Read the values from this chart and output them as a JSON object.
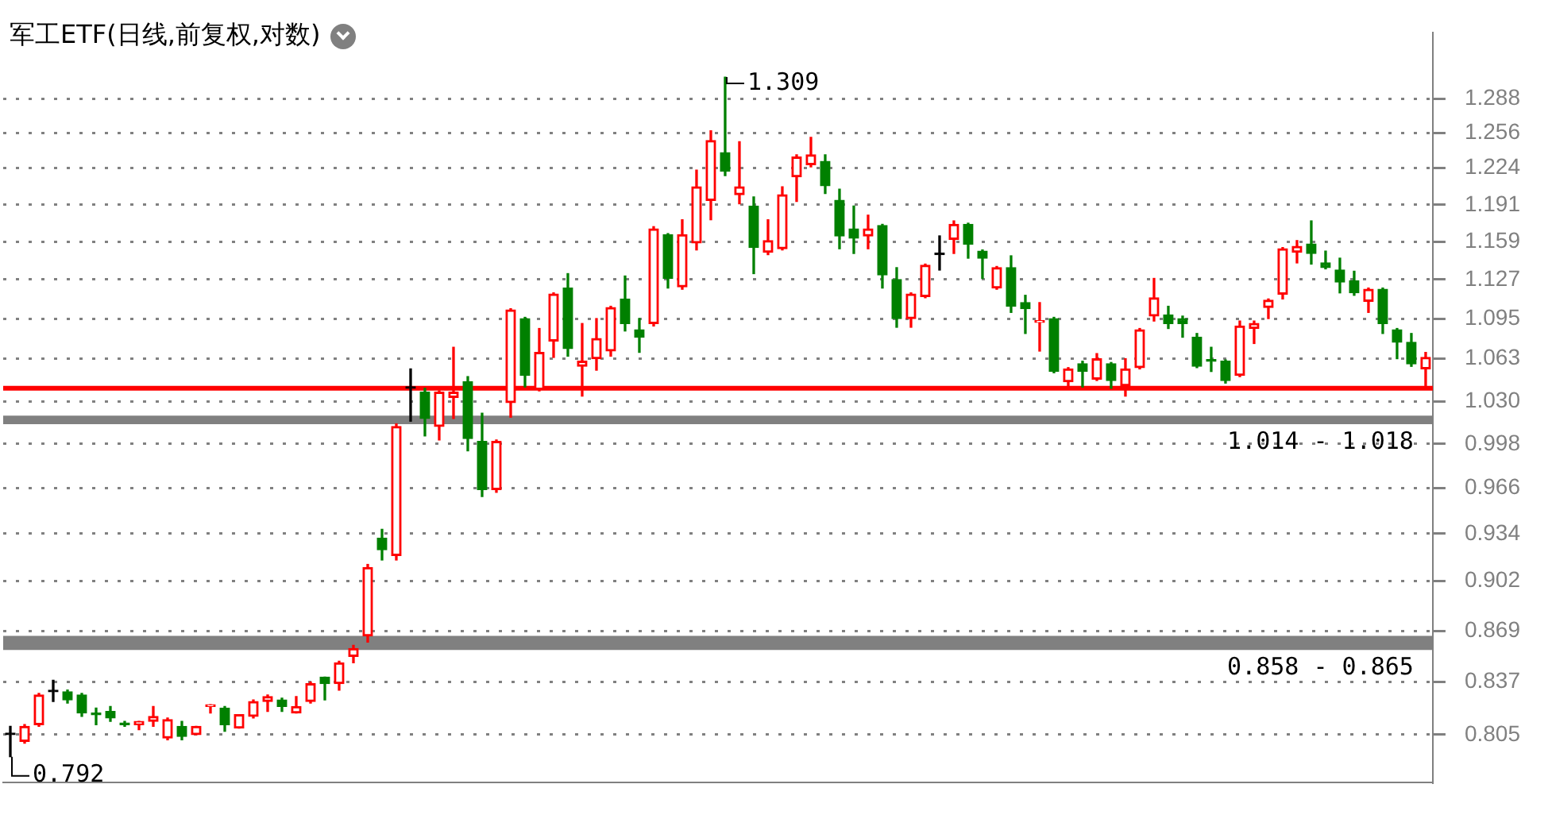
{
  "chart_data": {
    "type": "candlestick",
    "title": "军工ETF(日线,前复权,对数)",
    "categories": [
      null,
      null,
      null,
      null,
      null,
      null,
      null,
      null,
      null,
      null,
      null,
      null,
      null,
      null,
      null,
      null,
      null,
      null,
      null,
      null,
      null,
      null,
      null,
      null,
      null,
      null,
      null,
      null,
      null,
      null,
      null,
      null,
      null,
      null,
      null,
      null,
      null,
      null,
      null,
      null,
      null,
      null,
      null,
      null,
      null,
      null,
      null,
      null,
      null,
      null,
      null,
      null,
      null,
      null,
      null,
      null,
      null,
      null,
      null,
      null,
      null,
      null,
      null,
      null,
      null,
      null,
      null,
      null,
      null,
      null,
      null,
      null,
      null,
      null,
      null,
      null,
      null,
      null,
      null,
      null,
      null,
      null,
      null,
      null,
      null,
      null,
      null,
      null,
      null,
      null,
      null,
      null,
      null,
      null,
      null,
      null,
      null,
      null,
      null,
      null
    ],
    "ohlc": [
      [
        0.805,
        0.81,
        0.792,
        0.805
      ],
      [
        0.801,
        0.811,
        0.8,
        0.81
      ],
      [
        0.811,
        0.83,
        0.81,
        0.829
      ],
      [
        0.831,
        0.838,
        0.825,
        0.831
      ],
      [
        0.831,
        0.832,
        0.824,
        0.826
      ],
      [
        0.829,
        0.83,
        0.816,
        0.818
      ],
      [
        0.818,
        0.821,
        0.811,
        0.817
      ],
      [
        0.819,
        0.822,
        0.813,
        0.815
      ],
      [
        0.812,
        0.813,
        0.81,
        0.811
      ],
      [
        0.811,
        0.813,
        0.808,
        0.813
      ],
      [
        0.813,
        0.822,
        0.81,
        0.816
      ],
      [
        0.803,
        0.815,
        0.802,
        0.814
      ],
      [
        0.81,
        0.813,
        0.802,
        0.804
      ],
      [
        0.805,
        0.81,
        0.805,
        0.81
      ],
      [
        0.822,
        0.823,
        0.818,
        0.823
      ],
      [
        0.821,
        0.822,
        0.807,
        0.811
      ],
      [
        0.809,
        0.817,
        0.809,
        0.817
      ],
      [
        0.816,
        0.826,
        0.815,
        0.825
      ],
      [
        0.825,
        0.829,
        0.819,
        0.828
      ],
      [
        0.826,
        0.827,
        0.819,
        0.822
      ],
      [
        0.818,
        0.828,
        0.818,
        0.822
      ],
      [
        0.825,
        0.837,
        0.824,
        0.836
      ],
      [
        0.84,
        0.84,
        0.826,
        0.836
      ],
      [
        0.836,
        0.85,
        0.832,
        0.849
      ],
      [
        0.853,
        0.86,
        0.849,
        0.858
      ],
      [
        0.866,
        0.913,
        0.862,
        0.911
      ],
      [
        0.931,
        0.937,
        0.916,
        0.923
      ],
      [
        0.919,
        1.013,
        0.916,
        1.011
      ],
      [
        1.04,
        1.055,
        1.015,
        1.04
      ],
      [
        1.037,
        1.04,
        1.004,
        1.017
      ],
      [
        1.011,
        1.038,
        1.001,
        1.037
      ],
      [
        1.033,
        1.072,
        1.017,
        1.037
      ],
      [
        1.045,
        1.049,
        0.993,
        1.002
      ],
      [
        1.0,
        1.021,
        0.96,
        0.965
      ],
      [
        0.965,
        1.001,
        0.963,
        1.0
      ],
      [
        1.029,
        1.103,
        1.018,
        1.102
      ],
      [
        1.095,
        1.096,
        1.041,
        1.05
      ],
      [
        1.039,
        1.087,
        1.038,
        1.068
      ],
      [
        1.077,
        1.116,
        1.064,
        1.115
      ],
      [
        1.12,
        1.132,
        1.065,
        1.071
      ],
      [
        1.057,
        1.091,
        1.034,
        1.061
      ],
      [
        1.063,
        1.095,
        1.054,
        1.079
      ],
      [
        1.069,
        1.105,
        1.065,
        1.104
      ],
      [
        1.111,
        1.13,
        1.085,
        1.091
      ],
      [
        1.086,
        1.095,
        1.068,
        1.08
      ],
      [
        1.091,
        1.172,
        1.089,
        1.17
      ],
      [
        1.165,
        1.166,
        1.12,
        1.128
      ],
      [
        1.121,
        1.178,
        1.119,
        1.165
      ],
      [
        1.158,
        1.222,
        1.152,
        1.207
      ],
      [
        1.195,
        1.258,
        1.178,
        1.249
      ],
      [
        1.238,
        1.309,
        1.217,
        1.221
      ],
      [
        1.2,
        1.248,
        1.192,
        1.207
      ],
      [
        1.19,
        1.198,
        1.132,
        1.154
      ],
      [
        1.15,
        1.178,
        1.148,
        1.16
      ],
      [
        1.153,
        1.207,
        1.152,
        1.2
      ],
      [
        1.216,
        1.236,
        1.194,
        1.234
      ],
      [
        1.227,
        1.252,
        1.225,
        1.236
      ],
      [
        1.23,
        1.236,
        1.201,
        1.208
      ],
      [
        1.195,
        1.205,
        1.153,
        1.164
      ],
      [
        1.17,
        1.19,
        1.149,
        1.162
      ],
      [
        1.164,
        1.182,
        1.153,
        1.17
      ],
      [
        1.173,
        1.174,
        1.12,
        1.131
      ],
      [
        1.127,
        1.137,
        1.088,
        1.095
      ],
      [
        1.095,
        1.116,
        1.088,
        1.115
      ],
      [
        1.113,
        1.14,
        1.112,
        1.139
      ],
      [
        1.148,
        1.164,
        1.135,
        1.148
      ],
      [
        1.161,
        1.177,
        1.149,
        1.174
      ],
      [
        1.174,
        1.175,
        1.145,
        1.157
      ],
      [
        1.151,
        1.152,
        1.128,
        1.145
      ],
      [
        1.12,
        1.138,
        1.119,
        1.137
      ],
      [
        1.137,
        1.147,
        1.1,
        1.105
      ],
      [
        1.108,
        1.114,
        1.083,
        1.103
      ],
      [
        1.092,
        1.108,
        1.069,
        1.093
      ],
      [
        1.095,
        1.096,
        1.052,
        1.053
      ],
      [
        1.045,
        1.056,
        1.04,
        1.055
      ],
      [
        1.059,
        1.061,
        1.041,
        1.053
      ],
      [
        1.047,
        1.067,
        1.046,
        1.063
      ],
      [
        1.059,
        1.06,
        1.04,
        1.046
      ],
      [
        1.042,
        1.063,
        1.034,
        1.055
      ],
      [
        1.056,
        1.087,
        1.055,
        1.086
      ],
      [
        1.097,
        1.128,
        1.093,
        1.112
      ],
      [
        1.098,
        1.105,
        1.087,
        1.091
      ],
      [
        1.095,
        1.097,
        1.08,
        1.091
      ],
      [
        1.08,
        1.083,
        1.056,
        1.057
      ],
      [
        1.062,
        1.072,
        1.053,
        1.061
      ],
      [
        1.061,
        1.062,
        1.044,
        1.046
      ],
      [
        1.05,
        1.093,
        1.049,
        1.089
      ],
      [
        1.087,
        1.093,
        1.075,
        1.091
      ],
      [
        1.104,
        1.111,
        1.095,
        1.11
      ],
      [
        1.115,
        1.154,
        1.111,
        1.153
      ],
      [
        1.15,
        1.16,
        1.141,
        1.155
      ],
      [
        1.157,
        1.177,
        1.14,
        1.149
      ],
      [
        1.141,
        1.151,
        1.136,
        1.137
      ],
      [
        1.135,
        1.145,
        1.116,
        1.125
      ],
      [
        1.126,
        1.134,
        1.114,
        1.116
      ],
      [
        1.109,
        1.12,
        1.1,
        1.119
      ],
      [
        1.119,
        1.12,
        1.083,
        1.091
      ],
      [
        1.086,
        1.087,
        1.063,
        1.076
      ],
      [
        1.076,
        1.083,
        1.057,
        1.059
      ],
      [
        1.055,
        1.068,
        1.042,
        1.064
      ]
    ],
    "colors": [
      "#000000",
      "#ff0000",
      "#ff0000",
      "#000000",
      "#008000",
      "#008000",
      "#008000",
      "#008000",
      "#008000",
      "#ff0000",
      "#ff0000",
      "#ff0000",
      "#008000",
      "#ff0000",
      "#ff0000",
      "#008000",
      "#ff0000",
      "#ff0000",
      "#ff0000",
      "#008000",
      "#ff0000",
      "#ff0000",
      "#008000",
      "#ff0000",
      "#ff0000",
      "#ff0000",
      "#008000",
      "#ff0000",
      "#000000",
      "#008000",
      "#ff0000",
      "#ff0000",
      "#008000",
      "#008000",
      "#ff0000",
      "#ff0000",
      "#008000",
      "#ff0000",
      "#ff0000",
      "#008000",
      "#ff0000",
      "#ff0000",
      "#ff0000",
      "#008000",
      "#008000",
      "#ff0000",
      "#008000",
      "#ff0000",
      "#ff0000",
      "#ff0000",
      "#008000",
      "#ff0000",
      "#008000",
      "#ff0000",
      "#ff0000",
      "#ff0000",
      "#ff0000",
      "#008000",
      "#008000",
      "#008000",
      "#ff0000",
      "#008000",
      "#008000",
      "#ff0000",
      "#ff0000",
      "#000000",
      "#ff0000",
      "#008000",
      "#008000",
      "#ff0000",
      "#008000",
      "#008000",
      "#ff0000",
      "#008000",
      "#ff0000",
      "#008000",
      "#ff0000",
      "#008000",
      "#ff0000",
      "#ff0000",
      "#ff0000",
      "#008000",
      "#008000",
      "#008000",
      "#008000",
      "#008000",
      "#ff0000",
      "#ff0000",
      "#ff0000",
      "#ff0000",
      "#ff0000",
      "#008000",
      "#008000",
      "#008000",
      "#008000",
      "#ff0000",
      "#008000",
      "#008000",
      "#008000",
      "#ff0000"
    ],
    "ylim": [
      0.777,
      1.353
    ],
    "yticks": [
      0.805,
      0.837,
      0.869,
      0.902,
      0.934,
      0.966,
      0.998,
      {
        "value": 1.03,
        "label": "1.030"
      },
      1.063,
      1.095,
      1.127,
      1.159,
      1.191,
      1.224,
      1.256,
      1.288
    ],
    "log": "y",
    "grid": "y",
    "tick_labels": "y",
    "ref_lines": [
      {
        "axis": "y",
        "value": 1.04,
        "color": "#ff0000"
      }
    ],
    "bands": [
      {
        "axis": "y",
        "from": 1.014,
        "to": 1.018,
        "label": "1.014 - 1.018",
        "color": "#808080"
      },
      {
        "axis": "y",
        "from": 0.858,
        "to": 0.865,
        "label": "0.858 - 0.865",
        "color": "#808080"
      }
    ],
    "annotations": [
      "1.309",
      "0.792"
    ]
  }
}
